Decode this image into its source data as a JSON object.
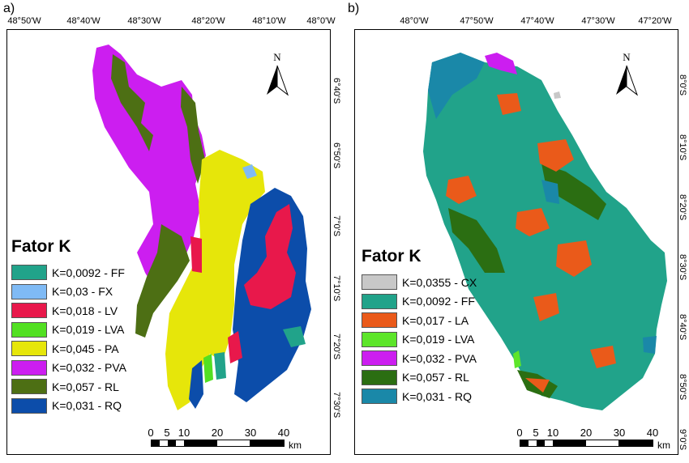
{
  "panel_a": {
    "letter": "a)",
    "top_ticks": [
      "48°50'W",
      "48°40'W",
      "48°30'W",
      "48°20'W",
      "48°10'W",
      "48°0'W"
    ],
    "right_ticks": [
      "6°40'S",
      "6°50'S",
      "7°0'S",
      "7°10'S",
      "7°20'S",
      "7°30'S"
    ],
    "north_label": "N",
    "legend": {
      "title": "Fator K",
      "items": [
        {
          "label": "K=0,0092 - FF",
          "color": "#21a38a"
        },
        {
          "label": "K=0,03 - FX",
          "color": "#7fbaf5"
        },
        {
          "label": "K=0,018 - LV",
          "color": "#e8184b"
        },
        {
          "label": "K=0,019 - LVA",
          "color": "#52e022"
        },
        {
          "label": "K=0,045 - PA",
          "color": "#e6e60a"
        },
        {
          "label": "K=0,032 - PVA",
          "color": "#cc1ef0"
        },
        {
          "label": "K=0,057 - RL",
          "color": "#4d6f14"
        },
        {
          "label": "K=0,031 - RQ",
          "color": "#0c4daa"
        }
      ]
    },
    "scale": {
      "labels": [
        "0",
        "5",
        "10",
        "20",
        "30",
        "40"
      ],
      "unit": "km"
    }
  },
  "panel_b": {
    "letter": "b)",
    "top_ticks": [
      "48°0'W",
      "47°50'W",
      "47°40'W",
      "47°30'W",
      "47°20'W"
    ],
    "right_ticks": [
      "8°0'S",
      "8°10'S",
      "8°20'S",
      "8°30'S",
      "8°40'S",
      "8°50'S",
      "9°0'S"
    ],
    "north_label": "N",
    "legend": {
      "title": "Fator K",
      "items": [
        {
          "label": "K=0,0355 - CX",
          "color": "#c8c8c8"
        },
        {
          "label": "K=0,0092 - FF",
          "color": "#21a38a"
        },
        {
          "label": "K=0,017 - LA",
          "color": "#ea5a1a"
        },
        {
          "label": "K=0,019 - LVA",
          "color": "#5de52a"
        },
        {
          "label": "K=0,032 - PVA",
          "color": "#cc1ef0"
        },
        {
          "label": "K=0,057 - RL",
          "color": "#2b6e12"
        },
        {
          "label": "K=0,031 - RQ",
          "color": "#1a88a8"
        }
      ]
    },
    "scale": {
      "labels": [
        "0",
        "5",
        "10",
        "20",
        "30",
        "40"
      ],
      "unit": "km"
    }
  }
}
